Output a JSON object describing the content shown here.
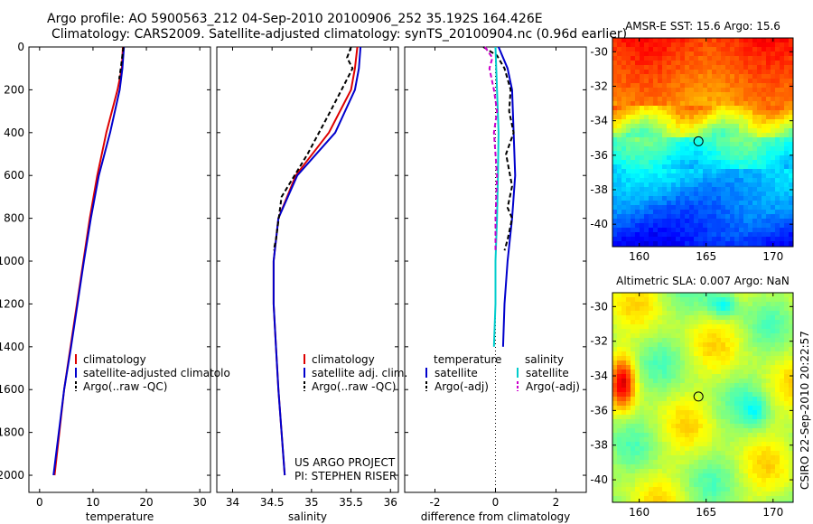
{
  "header": {
    "line1": "Argo profile: AO 5900563_212 04-Sep-2010 20100906_252 35.192S 164.426E",
    "line2": "Climatology: CARS2009. Satellite-adjusted climatology: synTS_20100904.nc (0.96d earlier)"
  },
  "side_label": "CSIRO 22-Sep-2010 20:22:57",
  "chart_data": [
    {
      "type": "line",
      "id": "temperature_profile",
      "xlabel": "temperature",
      "ylabel": "",
      "xlim": [
        -2,
        32
      ],
      "ylim": [
        2080,
        0
      ],
      "xticks": [
        0,
        10,
        20,
        30
      ],
      "yticks": [
        0,
        200,
        400,
        600,
        800,
        1000,
        1200,
        1400,
        1600,
        1800,
        2000
      ],
      "legend": {
        "placement": "center-right",
        "entries": [
          "climatology",
          "satellite-adjusted climatolo",
          "Argo(..raw -QC)"
        ]
      },
      "series": [
        {
          "name": "climatology",
          "color": "#dd0000",
          "dash": false,
          "points": [
            [
              15.6,
              0
            ],
            [
              15.4,
              100
            ],
            [
              14.6,
              200
            ],
            [
              12.5,
              400
            ],
            [
              10.8,
              600
            ],
            [
              9.4,
              800
            ],
            [
              8.2,
              1000
            ],
            [
              7.0,
              1200
            ],
            [
              5.8,
              1400
            ],
            [
              4.6,
              1600
            ],
            [
              3.7,
              1800
            ],
            [
              2.8,
              2000
            ]
          ]
        },
        {
          "name": "satellite-adjusted climatolo",
          "color": "#0000cc",
          "dash": false,
          "points": [
            [
              15.8,
              0
            ],
            [
              15.5,
              100
            ],
            [
              15.0,
              200
            ],
            [
              13.2,
              400
            ],
            [
              11.1,
              600
            ],
            [
              9.6,
              800
            ],
            [
              8.3,
              1000
            ],
            [
              7.1,
              1200
            ],
            [
              5.9,
              1400
            ],
            [
              4.6,
              1600
            ],
            [
              3.6,
              1800
            ],
            [
              2.6,
              2000
            ]
          ]
        },
        {
          "name": "Argo(..raw -QC)",
          "color": "#000000",
          "dash": true,
          "points": [
            [
              15.7,
              0
            ],
            [
              15.2,
              100
            ],
            [
              14.9,
              150
            ]
          ]
        }
      ]
    },
    {
      "type": "line",
      "id": "salinity_profile",
      "xlabel": "salinity",
      "ylabel": "",
      "xlim": [
        33.8,
        36.1
      ],
      "ylim": [
        2080,
        0
      ],
      "xticks": [
        34,
        34.5,
        35,
        35.5,
        36
      ],
      "legend": {
        "placement": "center-right",
        "entries": [
          "climatology",
          "satellite adj. clim.",
          "Argo(..raw -QC)"
        ]
      },
      "annotation": [
        "US ARGO PROJECT",
        "PI: STEPHEN RISER"
      ],
      "series": [
        {
          "name": "climatology",
          "color": "#dd0000",
          "dash": false,
          "points": [
            [
              35.58,
              0
            ],
            [
              35.55,
              100
            ],
            [
              35.5,
              200
            ],
            [
              35.22,
              400
            ],
            [
              34.8,
              600
            ],
            [
              34.58,
              800
            ],
            [
              34.52,
              1000
            ],
            [
              34.52,
              1200
            ],
            [
              34.55,
              1400
            ],
            [
              34.58,
              1600
            ],
            [
              34.62,
              1800
            ],
            [
              34.66,
              2000
            ]
          ]
        },
        {
          "name": "satellite adj. clim.",
          "color": "#0000cc",
          "dash": false,
          "points": [
            [
              35.62,
              0
            ],
            [
              35.6,
              100
            ],
            [
              35.55,
              200
            ],
            [
              35.3,
              400
            ],
            [
              34.82,
              600
            ],
            [
              34.58,
              800
            ],
            [
              34.52,
              1000
            ],
            [
              34.52,
              1200
            ],
            [
              34.55,
              1400
            ],
            [
              34.58,
              1600
            ],
            [
              34.62,
              1800
            ],
            [
              34.66,
              2000
            ]
          ]
        },
        {
          "name": "Argo(..raw -QC)",
          "color": "#000000",
          "dash": true,
          "points": [
            [
              35.5,
              0
            ],
            [
              35.45,
              50
            ],
            [
              35.52,
              100
            ],
            [
              35.38,
              200
            ],
            [
              35.24,
              300
            ],
            [
              34.95,
              500
            ],
            [
              34.62,
              700
            ],
            [
              34.55,
              900
            ],
            [
              34.52,
              950
            ]
          ]
        }
      ]
    },
    {
      "type": "line",
      "id": "difference_profile",
      "xlabel": "difference from climatology",
      "ylabel": "",
      "xlim": [
        -3,
        3
      ],
      "ylim": [
        2080,
        0
      ],
      "xticks": [
        -2,
        0,
        2
      ],
      "legend": {
        "placement": "center",
        "groups": [
          "temperature",
          "salinity"
        ],
        "entries": [
          "satellite",
          "Argo(-adj)",
          "satellite",
          "Argo(-adj)"
        ]
      },
      "series": [
        {
          "name": "satellite",
          "group": "temperature",
          "color": "#0000cc",
          "dash": false,
          "points": [
            [
              0.1,
              0
            ],
            [
              0.4,
              100
            ],
            [
              0.55,
              200
            ],
            [
              0.6,
              400
            ],
            [
              0.65,
              600
            ],
            [
              0.55,
              800
            ],
            [
              0.4,
              1000
            ],
            [
              0.3,
              1200
            ],
            [
              0.25,
              1400
            ]
          ]
        },
        {
          "name": "Argo(-adj)",
          "group": "temperature",
          "color": "#000000",
          "dash": true,
          "points": [
            [
              -0.4,
              0
            ],
            [
              0.05,
              40
            ],
            [
              0.3,
              100
            ],
            [
              0.5,
              200
            ],
            [
              0.45,
              300
            ],
            [
              0.6,
              400
            ],
            [
              0.35,
              500
            ],
            [
              0.55,
              650
            ],
            [
              0.4,
              750
            ],
            [
              0.55,
              800
            ],
            [
              0.4,
              900
            ],
            [
              0.3,
              950
            ]
          ]
        },
        {
          "name": "satellite",
          "group": "salinity",
          "color": "#00cccc",
          "dash": false,
          "points": [
            [
              0.0,
              0
            ],
            [
              0.05,
              200
            ],
            [
              0.1,
              400
            ],
            [
              0.08,
              600
            ],
            [
              0.05,
              800
            ],
            [
              0.0,
              1000
            ],
            [
              0.0,
              1200
            ],
            [
              -0.05,
              1400
            ]
          ]
        },
        {
          "name": "Argo(-adj)",
          "group": "salinity",
          "color": "#cc00cc",
          "dash": true,
          "points": [
            [
              -0.35,
              0
            ],
            [
              -0.1,
              50
            ],
            [
              -0.2,
              100
            ],
            [
              -0.05,
              200
            ],
            [
              0.05,
              300
            ],
            [
              -0.05,
              400
            ],
            [
              0.05,
              600
            ],
            [
              0.0,
              800
            ],
            [
              0.0,
              950
            ]
          ]
        }
      ]
    },
    {
      "type": "heatmap",
      "id": "sst_map",
      "title": "AMSR-E SST: 15.6 Argo: 15.6",
      "xlim": [
        158,
        171.5
      ],
      "ylim": [
        -41.3,
        -29.2
      ],
      "xticks": [
        160,
        165,
        170
      ],
      "yticks": [
        -30,
        -32,
        -34,
        -36,
        -38,
        -40
      ],
      "marker": {
        "lon": 164.426,
        "lat": -35.192
      }
    },
    {
      "type": "heatmap",
      "id": "sla_map",
      "title": "Altimetric SLA: 0.007 Argo: NaN",
      "xlim": [
        158,
        171.5
      ],
      "ylim": [
        -41.3,
        -29.2
      ],
      "xticks": [
        160,
        165,
        170
      ],
      "yticks": [
        -30,
        -32,
        -34,
        -36,
        -38,
        -40
      ],
      "marker": {
        "lon": 164.426,
        "lat": -35.192
      }
    }
  ]
}
